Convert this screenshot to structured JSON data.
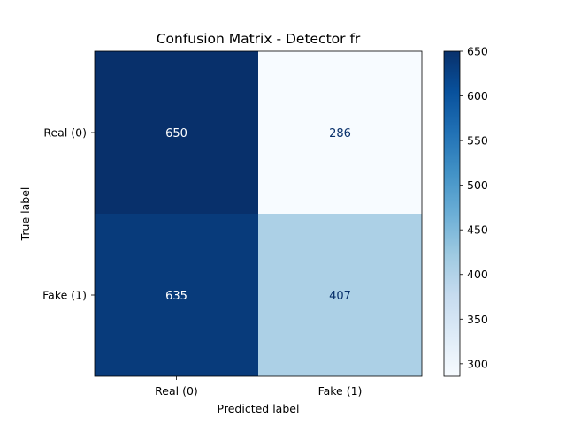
{
  "chart_data": {
    "type": "heatmap",
    "title": "Confusion Matrix - Detector fr",
    "xlabel": "Predicted label",
    "ylabel": "True label",
    "x_categories": [
      "Real (0)",
      "Fake (1)"
    ],
    "y_categories": [
      "Real (0)",
      "Fake (1)"
    ],
    "values": [
      [
        650,
        286
      ],
      [
        635,
        407
      ]
    ],
    "colormap": "Blues",
    "colorbar": {
      "range": [
        286,
        650
      ],
      "ticks": [
        300,
        350,
        400,
        450,
        500,
        550,
        600,
        650
      ]
    },
    "grid": false
  }
}
